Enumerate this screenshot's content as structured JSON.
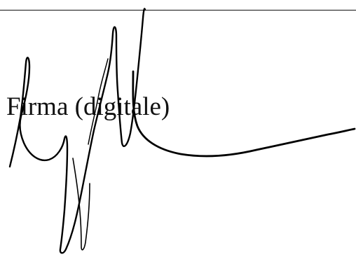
{
  "signature": {
    "label": "Firma (digitale)",
    "ink_color": "#000000"
  }
}
